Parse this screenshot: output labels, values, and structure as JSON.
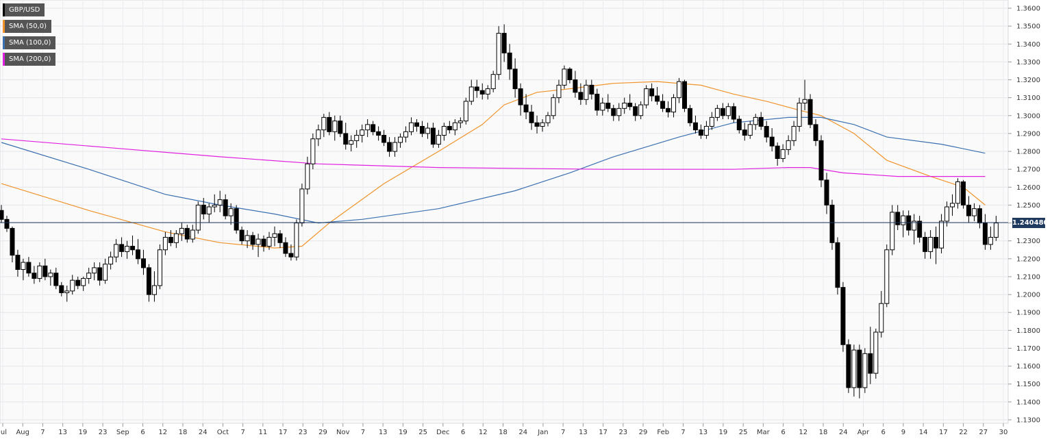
{
  "chart_data": {
    "type": "candlestick",
    "instrument": "GBP/USD",
    "legend": [
      {
        "label": "GBP/USD",
        "color": "#000000"
      },
      {
        "label": "SMA (50,0)",
        "color": "#f0932b"
      },
      {
        "label": "SMA (100,0)",
        "color": "#3a6fb0"
      },
      {
        "label": "SMA (200,0)",
        "color": "#e020e0"
      }
    ],
    "last_price": "1.240480",
    "last_price_value": 1.24048,
    "ylim": [
      1.13,
      1.36
    ],
    "y_ticks": [
      "1.3600",
      "1.3500",
      "1.3400",
      "1.3300",
      "1.3200",
      "1.3100",
      "1.3000",
      "1.2900",
      "1.2800",
      "1.2700",
      "1.2600",
      "1.2500",
      "1.2400",
      "1.2300",
      "1.2200",
      "1.2100",
      "1.2000",
      "1.1900",
      "1.1800",
      "1.1700",
      "1.1600",
      "1.1500",
      "1.1400",
      "1.1300"
    ],
    "x_ticks": [
      "Jul",
      "Aug",
      "7",
      "13",
      "19",
      "23",
      "Sep",
      "6",
      "12",
      "18",
      "24",
      "Oct",
      "7",
      "11",
      "17",
      "23",
      "29",
      "Nov",
      "7",
      "13",
      "19",
      "25",
      "Dec",
      "6",
      "12",
      "18",
      "24",
      "Jan",
      "7",
      "13",
      "17",
      "23",
      "29",
      "Feb",
      "7",
      "13",
      "19",
      "25",
      "Mar",
      "6",
      "12",
      "18",
      "24",
      "Apr",
      "6",
      "9",
      "14",
      "17",
      "22",
      "27",
      "30"
    ],
    "grid": true,
    "candles": [
      [
        1.247,
        1.25,
        1.24,
        1.242
      ],
      [
        1.242,
        1.244,
        1.235,
        1.237
      ],
      [
        1.237,
        1.238,
        1.218,
        1.222
      ],
      [
        1.222,
        1.225,
        1.21,
        1.214
      ],
      [
        1.214,
        1.22,
        1.208,
        1.218
      ],
      [
        1.218,
        1.221,
        1.21,
        1.212
      ],
      [
        1.212,
        1.216,
        1.206,
        1.209
      ],
      [
        1.209,
        1.218,
        1.207,
        1.216
      ],
      [
        1.216,
        1.22,
        1.208,
        1.21
      ],
      [
        1.21,
        1.214,
        1.205,
        1.212
      ],
      [
        1.212,
        1.215,
        1.203,
        1.205
      ],
      [
        1.205,
        1.207,
        1.199,
        1.201
      ],
      [
        1.201,
        1.205,
        1.196,
        1.202
      ],
      [
        1.202,
        1.211,
        1.2,
        1.208
      ],
      [
        1.208,
        1.21,
        1.203,
        1.205
      ],
      [
        1.205,
        1.21,
        1.202,
        1.209
      ],
      [
        1.209,
        1.215,
        1.206,
        1.212
      ],
      [
        1.212,
        1.218,
        1.208,
        1.215
      ],
      [
        1.215,
        1.218,
        1.205,
        1.208
      ],
      [
        1.208,
        1.22,
        1.206,
        1.217
      ],
      [
        1.217,
        1.224,
        1.214,
        1.221
      ],
      [
        1.221,
        1.231,
        1.218,
        1.228
      ],
      [
        1.228,
        1.232,
        1.221,
        1.224
      ],
      [
        1.224,
        1.23,
        1.22,
        1.227
      ],
      [
        1.227,
        1.233,
        1.222,
        1.225
      ],
      [
        1.225,
        1.231,
        1.217,
        1.22
      ],
      [
        1.22,
        1.225,
        1.211,
        1.215
      ],
      [
        1.215,
        1.217,
        1.196,
        1.2
      ],
      [
        1.2,
        1.213,
        1.196,
        1.205
      ],
      [
        1.205,
        1.228,
        1.203,
        1.225
      ],
      [
        1.225,
        1.235,
        1.222,
        1.232
      ],
      [
        1.232,
        1.236,
        1.227,
        1.229
      ],
      [
        1.229,
        1.236,
        1.226,
        1.234
      ],
      [
        1.234,
        1.24,
        1.23,
        1.237
      ],
      [
        1.237,
        1.239,
        1.229,
        1.231
      ],
      [
        1.231,
        1.239,
        1.229,
        1.236
      ],
      [
        1.236,
        1.252,
        1.234,
        1.25
      ],
      [
        1.25,
        1.254,
        1.242,
        1.245
      ],
      [
        1.245,
        1.251,
        1.24,
        1.249
      ],
      [
        1.249,
        1.256,
        1.246,
        1.25
      ],
      [
        1.25,
        1.258,
        1.246,
        1.253
      ],
      [
        1.253,
        1.256,
        1.242,
        1.244
      ],
      [
        1.244,
        1.251,
        1.239,
        1.248
      ],
      [
        1.248,
        1.25,
        1.234,
        1.236
      ],
      [
        1.236,
        1.238,
        1.228,
        1.23
      ],
      [
        1.23,
        1.236,
        1.226,
        1.233
      ],
      [
        1.233,
        1.235,
        1.225,
        1.228
      ],
      [
        1.228,
        1.234,
        1.221,
        1.231
      ],
      [
        1.231,
        1.233,
        1.224,
        1.227
      ],
      [
        1.227,
        1.235,
        1.225,
        1.232
      ],
      [
        1.232,
        1.238,
        1.227,
        1.234
      ],
      [
        1.234,
        1.236,
        1.226,
        1.229
      ],
      [
        1.229,
        1.232,
        1.221,
        1.223
      ],
      [
        1.223,
        1.228,
        1.219,
        1.221
      ],
      [
        1.221,
        1.242,
        1.219,
        1.24
      ],
      [
        1.24,
        1.262,
        1.238,
        1.259
      ],
      [
        1.259,
        1.277,
        1.256,
        1.273
      ],
      [
        1.273,
        1.29,
        1.27,
        1.287
      ],
      [
        1.287,
        1.295,
        1.283,
        1.292
      ],
      [
        1.292,
        1.301,
        1.288,
        1.299
      ],
      [
        1.299,
        1.302,
        1.289,
        1.291
      ],
      [
        1.291,
        1.3,
        1.286,
        1.297
      ],
      [
        1.297,
        1.3,
        1.288,
        1.29
      ],
      [
        1.29,
        1.296,
        1.281,
        1.284
      ],
      [
        1.284,
        1.289,
        1.28,
        1.286
      ],
      [
        1.286,
        1.292,
        1.282,
        1.289
      ],
      [
        1.289,
        1.295,
        1.285,
        1.292
      ],
      [
        1.292,
        1.298,
        1.288,
        1.295
      ],
      [
        1.295,
        1.297,
        1.289,
        1.291
      ],
      [
        1.291,
        1.294,
        1.286,
        1.289
      ],
      [
        1.289,
        1.292,
        1.283,
        1.285
      ],
      [
        1.285,
        1.288,
        1.277,
        1.28
      ],
      [
        1.28,
        1.288,
        1.277,
        1.285
      ],
      [
        1.285,
        1.29,
        1.282,
        1.288
      ],
      [
        1.288,
        1.294,
        1.285,
        1.291
      ],
      [
        1.291,
        1.299,
        1.289,
        1.296
      ],
      [
        1.296,
        1.298,
        1.291,
        1.294
      ],
      [
        1.294,
        1.297,
        1.288,
        1.29
      ],
      [
        1.29,
        1.296,
        1.287,
        1.293
      ],
      [
        1.293,
        1.296,
        1.282,
        1.284
      ],
      [
        1.284,
        1.292,
        1.282,
        1.289
      ],
      [
        1.289,
        1.296,
        1.286,
        1.294
      ],
      [
        1.294,
        1.297,
        1.29,
        1.292
      ],
      [
        1.292,
        1.298,
        1.289,
        1.296
      ],
      [
        1.296,
        1.299,
        1.293,
        1.297
      ],
      [
        1.297,
        1.31,
        1.295,
        1.308
      ],
      [
        1.308,
        1.32,
        1.306,
        1.316
      ],
      [
        1.316,
        1.32,
        1.31,
        1.314
      ],
      [
        1.314,
        1.318,
        1.309,
        1.312
      ],
      [
        1.312,
        1.317,
        1.309,
        1.315
      ],
      [
        1.315,
        1.325,
        1.313,
        1.323
      ],
      [
        1.323,
        1.35,
        1.32,
        1.346
      ],
      [
        1.346,
        1.351,
        1.33,
        1.335
      ],
      [
        1.335,
        1.34,
        1.32,
        1.326
      ],
      [
        1.326,
        1.332,
        1.31,
        1.315
      ],
      [
        1.315,
        1.318,
        1.3,
        1.306
      ],
      [
        1.306,
        1.312,
        1.298,
        1.302
      ],
      [
        1.302,
        1.306,
        1.292,
        1.296
      ],
      [
        1.296,
        1.3,
        1.29,
        1.294
      ],
      [
        1.294,
        1.298,
        1.291,
        1.296
      ],
      [
        1.296,
        1.302,
        1.294,
        1.3
      ],
      [
        1.3,
        1.312,
        1.298,
        1.31
      ],
      [
        1.31,
        1.32,
        1.307,
        1.317
      ],
      [
        1.317,
        1.328,
        1.315,
        1.326
      ],
      [
        1.326,
        1.327,
        1.318,
        1.32
      ],
      [
        1.32,
        1.325,
        1.31,
        1.313
      ],
      [
        1.313,
        1.318,
        1.306,
        1.309
      ],
      [
        1.309,
        1.32,
        1.306,
        1.317
      ],
      [
        1.317,
        1.32,
        1.309,
        1.312
      ],
      [
        1.312,
        1.315,
        1.3,
        1.303
      ],
      [
        1.303,
        1.31,
        1.3,
        1.307
      ],
      [
        1.307,
        1.312,
        1.302,
        1.304
      ],
      [
        1.304,
        1.306,
        1.297,
        1.3
      ],
      [
        1.3,
        1.307,
        1.297,
        1.304
      ],
      [
        1.304,
        1.31,
        1.301,
        1.307
      ],
      [
        1.307,
        1.312,
        1.303,
        1.305
      ],
      [
        1.305,
        1.307,
        1.297,
        1.3
      ],
      [
        1.3,
        1.308,
        1.298,
        1.306
      ],
      [
        1.306,
        1.317,
        1.304,
        1.315
      ],
      [
        1.315,
        1.318,
        1.308,
        1.311
      ],
      [
        1.311,
        1.316,
        1.306,
        1.308
      ],
      [
        1.308,
        1.312,
        1.302,
        1.304
      ],
      [
        1.304,
        1.308,
        1.299,
        1.302
      ],
      [
        1.302,
        1.312,
        1.299,
        1.31
      ],
      [
        1.31,
        1.321,
        1.307,
        1.319
      ],
      [
        1.319,
        1.32,
        1.302,
        1.304
      ],
      [
        1.304,
        1.306,
        1.294,
        1.296
      ],
      [
        1.296,
        1.3,
        1.29,
        1.292
      ],
      [
        1.292,
        1.295,
        1.287,
        1.289
      ],
      [
        1.289,
        1.297,
        1.287,
        1.294
      ],
      [
        1.294,
        1.302,
        1.292,
        1.299
      ],
      [
        1.299,
        1.306,
        1.297,
        1.304
      ],
      [
        1.304,
        1.307,
        1.298,
        1.3
      ],
      [
        1.3,
        1.307,
        1.298,
        1.305
      ],
      [
        1.305,
        1.307,
        1.296,
        1.298
      ],
      [
        1.298,
        1.3,
        1.29,
        1.292
      ],
      [
        1.292,
        1.296,
        1.286,
        1.289
      ],
      [
        1.289,
        1.297,
        1.287,
        1.295
      ],
      [
        1.295,
        1.301,
        1.292,
        1.299
      ],
      [
        1.299,
        1.302,
        1.292,
        1.294
      ],
      [
        1.294,
        1.297,
        1.285,
        1.288
      ],
      [
        1.288,
        1.293,
        1.28,
        1.283
      ],
      [
        1.283,
        1.285,
        1.272,
        1.276
      ],
      [
        1.276,
        1.284,
        1.274,
        1.281
      ],
      [
        1.281,
        1.289,
        1.278,
        1.286
      ],
      [
        1.286,
        1.297,
        1.283,
        1.294
      ],
      [
        1.294,
        1.31,
        1.291,
        1.307
      ],
      [
        1.307,
        1.32,
        1.303,
        1.309
      ],
      [
        1.309,
        1.312,
        1.293,
        1.295
      ],
      [
        1.295,
        1.298,
        1.283,
        1.286
      ],
      [
        1.286,
        1.289,
        1.26,
        1.264
      ],
      [
        1.264,
        1.268,
        1.245,
        1.25
      ],
      [
        1.25,
        1.253,
        1.225,
        1.229
      ],
      [
        1.229,
        1.232,
        1.2,
        1.204
      ],
      [
        1.204,
        1.207,
        1.168,
        1.172
      ],
      [
        1.172,
        1.175,
        1.145,
        1.148
      ],
      [
        1.148,
        1.172,
        1.143,
        1.169
      ],
      [
        1.169,
        1.172,
        1.142,
        1.148
      ],
      [
        1.148,
        1.17,
        1.145,
        1.167
      ],
      [
        1.167,
        1.182,
        1.15,
        1.156
      ],
      [
        1.156,
        1.181,
        1.153,
        1.179
      ],
      [
        1.179,
        1.202,
        1.176,
        1.195
      ],
      [
        1.195,
        1.228,
        1.193,
        1.225
      ],
      [
        1.225,
        1.25,
        1.222,
        1.246
      ],
      [
        1.246,
        1.25,
        1.236,
        1.239
      ],
      [
        1.239,
        1.247,
        1.232,
        1.244
      ],
      [
        1.244,
        1.247,
        1.233,
        1.236
      ],
      [
        1.236,
        1.245,
        1.228,
        1.241
      ],
      [
        1.241,
        1.244,
        1.229,
        1.232
      ],
      [
        1.232,
        1.235,
        1.22,
        1.224
      ],
      [
        1.224,
        1.236,
        1.22,
        1.232
      ],
      [
        1.232,
        1.238,
        1.217,
        1.226
      ],
      [
        1.226,
        1.245,
        1.223,
        1.241
      ],
      [
        1.241,
        1.252,
        1.238,
        1.249
      ],
      [
        1.249,
        1.256,
        1.244,
        1.251
      ],
      [
        1.251,
        1.265,
        1.248,
        1.263
      ],
      [
        1.263,
        1.264,
        1.248,
        1.25
      ],
      [
        1.25,
        1.255,
        1.24,
        1.244
      ],
      [
        1.244,
        1.251,
        1.241,
        1.248
      ],
      [
        1.248,
        1.25,
        1.237,
        1.24
      ],
      [
        1.24,
        1.245,
        1.225,
        1.228
      ],
      [
        1.228,
        1.238,
        1.225,
        1.232
      ],
      [
        1.232,
        1.244,
        1.23,
        1.24
      ]
    ],
    "sma": [
      {
        "name": "SMA (50,0)",
        "color": "#f0932b",
        "points": [
          [
            0,
            1.262
          ],
          [
            16,
            1.247
          ],
          [
            30,
            1.235
          ],
          [
            40,
            1.229
          ],
          [
            50,
            1.226
          ],
          [
            55,
            1.227
          ],
          [
            60,
            1.24
          ],
          [
            70,
            1.262
          ],
          [
            80,
            1.28
          ],
          [
            88,
            1.295
          ],
          [
            92,
            1.306
          ],
          [
            98,
            1.313
          ],
          [
            104,
            1.315
          ],
          [
            112,
            1.318
          ],
          [
            120,
            1.319
          ],
          [
            128,
            1.317
          ],
          [
            134,
            1.312
          ],
          [
            140,
            1.308
          ],
          [
            146,
            1.303
          ],
          [
            150,
            1.3
          ],
          [
            156,
            1.29
          ],
          [
            162,
            1.275
          ],
          [
            170,
            1.266
          ],
          [
            176,
            1.26
          ],
          [
            180,
            1.25
          ]
        ]
      },
      {
        "name": "SMA (100,0)",
        "color": "#3a6fb0",
        "points": [
          [
            0,
            1.285
          ],
          [
            16,
            1.27
          ],
          [
            30,
            1.256
          ],
          [
            40,
            1.25
          ],
          [
            50,
            1.245
          ],
          [
            58,
            1.24
          ],
          [
            66,
            1.242
          ],
          [
            80,
            1.248
          ],
          [
            94,
            1.258
          ],
          [
            104,
            1.268
          ],
          [
            112,
            1.277
          ],
          [
            124,
            1.288
          ],
          [
            134,
            1.296
          ],
          [
            144,
            1.299
          ],
          [
            150,
            1.299
          ],
          [
            156,
            1.295
          ],
          [
            162,
            1.288
          ],
          [
            172,
            1.284
          ],
          [
            180,
            1.279
          ]
        ]
      },
      {
        "name": "SMA (200,0)",
        "color": "#e020e0",
        "points": [
          [
            0,
            1.287
          ],
          [
            20,
            1.282
          ],
          [
            40,
            1.277
          ],
          [
            58,
            1.273
          ],
          [
            80,
            1.271
          ],
          [
            110,
            1.27
          ],
          [
            134,
            1.27
          ],
          [
            144,
            1.271
          ],
          [
            148,
            1.271
          ],
          [
            154,
            1.268
          ],
          [
            164,
            1.266
          ],
          [
            180,
            1.266
          ]
        ]
      }
    ]
  }
}
